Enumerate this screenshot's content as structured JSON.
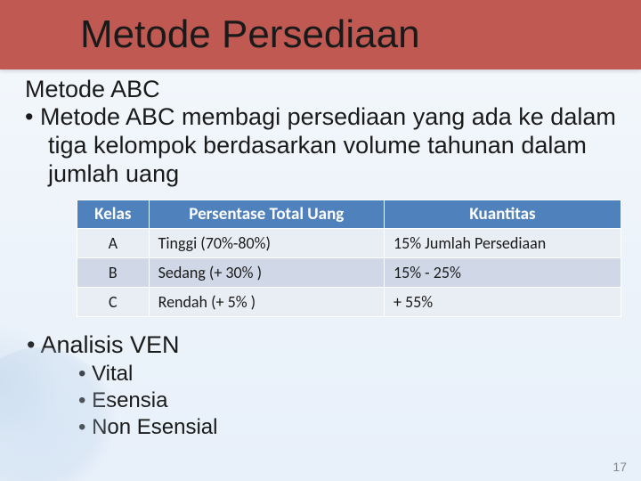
{
  "title": "Metode Persediaan",
  "subtitle": "Metode ABC",
  "bullet1": "•  Metode ABC membagi persediaan yang ada ke dalam tiga kelompok berdasarkan volume tahunan dalam jumlah uang",
  "table": {
    "headers": [
      "Kelas",
      "Persentase Total Uang",
      "Kuantitas"
    ],
    "rows": [
      [
        "A",
        "Tinggi (70%-80%)",
        "15% Jumlah Persediaan"
      ],
      [
        "B",
        "Sedang (+ 30% )",
        "15% - 25%"
      ],
      [
        "C",
        "Rendah (+ 5% )",
        "+ 55%"
      ]
    ],
    "header_bg": "#4f81bd",
    "header_fg": "#ffffff",
    "row_bg_odd": "#e9edf4",
    "row_bg_even": "#d0d8e8",
    "border_color": "#ffffff",
    "col_align": [
      "center",
      "left",
      "left"
    ]
  },
  "bullet2": "•  Analisis VEN",
  "sub_items": [
    "•  Vital",
    "•  Esensia",
    "•  Non Esensial"
  ],
  "page_number": "17",
  "colors": {
    "title_bar_bg": "#c15953",
    "body_text": "#1a1a1a",
    "page_num": "#86888c"
  }
}
